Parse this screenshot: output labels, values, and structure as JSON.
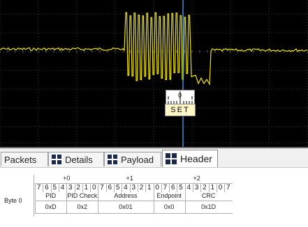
{
  "marker": {
    "value": "0",
    "label": "SET"
  },
  "tabs": [
    {
      "label": "Packets",
      "icon": ""
    },
    {
      "label": "Details",
      "icon": "grid-icon"
    },
    {
      "label": "Payload",
      "icon": "grid-icon"
    },
    {
      "label": "Header",
      "icon": "grid-icon",
      "active": true
    }
  ],
  "header_table": {
    "row_label": "Byte 0",
    "offsets": [
      "+0",
      "+1",
      "+2"
    ],
    "bits": [
      "7",
      "6",
      "5",
      "4",
      "3",
      "2",
      "1",
      "0",
      "7",
      "6",
      "5",
      "4",
      "3",
      "2",
      "1",
      "0",
      "7",
      "6",
      "5",
      "4",
      "3",
      "2",
      "1",
      "0",
      "7"
    ],
    "fields": [
      {
        "name": "PID",
        "value": "0xD"
      },
      {
        "name": "PID Check",
        "value": "0x2"
      },
      {
        "name": "Address",
        "value": "0x01"
      },
      {
        "name": "Endpoint",
        "value": "0x0"
      },
      {
        "name": "CRC",
        "value": "0x1D"
      }
    ]
  },
  "colors": {
    "trace": "#f2e600",
    "cursor": "#3a8fd8",
    "background": "#000000",
    "grid": "#3a3a3a",
    "tab_icon": "#1b2a4a"
  }
}
